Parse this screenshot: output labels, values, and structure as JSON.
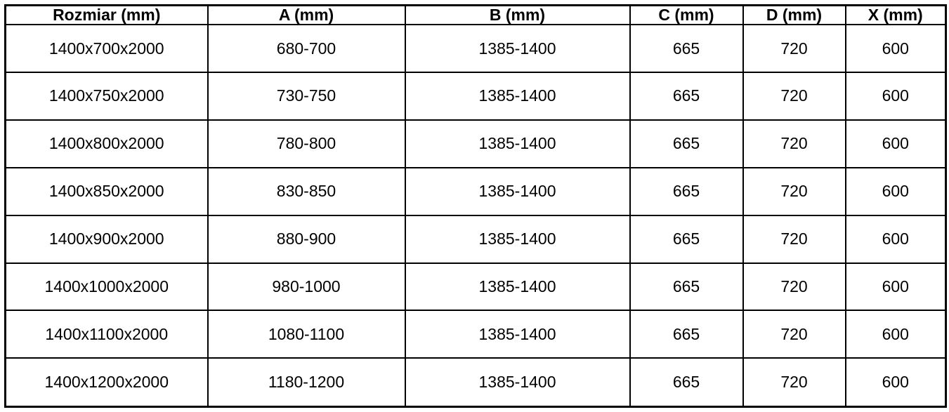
{
  "colors": {
    "border": "#000000",
    "text": "#000000",
    "background": "#ffffff"
  },
  "table": {
    "columns": [
      {
        "key": "rozmiar",
        "label": "Rozmiar (mm)"
      },
      {
        "key": "a",
        "label": "A (mm)"
      },
      {
        "key": "b",
        "label": "B (mm)"
      },
      {
        "key": "c",
        "label": "C (mm)"
      },
      {
        "key": "d",
        "label": "D (mm)"
      },
      {
        "key": "x",
        "label": "X (mm)"
      }
    ],
    "rows": [
      [
        "1400x700x2000",
        "680-700",
        "1385-1400",
        "665",
        "720",
        "600"
      ],
      [
        "1400x750x2000",
        "730-750",
        "1385-1400",
        "665",
        "720",
        "600"
      ],
      [
        "1400x800x2000",
        "780-800",
        "1385-1400",
        "665",
        "720",
        "600"
      ],
      [
        "1400x850x2000",
        "830-850",
        "1385-1400",
        "665",
        "720",
        "600"
      ],
      [
        "1400x900x2000",
        "880-900",
        "1385-1400",
        "665",
        "720",
        "600"
      ],
      [
        "1400x1000x2000",
        "980-1000",
        "1385-1400",
        "665",
        "720",
        "600"
      ],
      [
        "1400x1100x2000",
        "1080-1100",
        "1385-1400",
        "665",
        "720",
        "600"
      ],
      [
        "1400x1200x2000",
        "1180-1200",
        "1385-1400",
        "665",
        "720",
        "600"
      ]
    ]
  }
}
